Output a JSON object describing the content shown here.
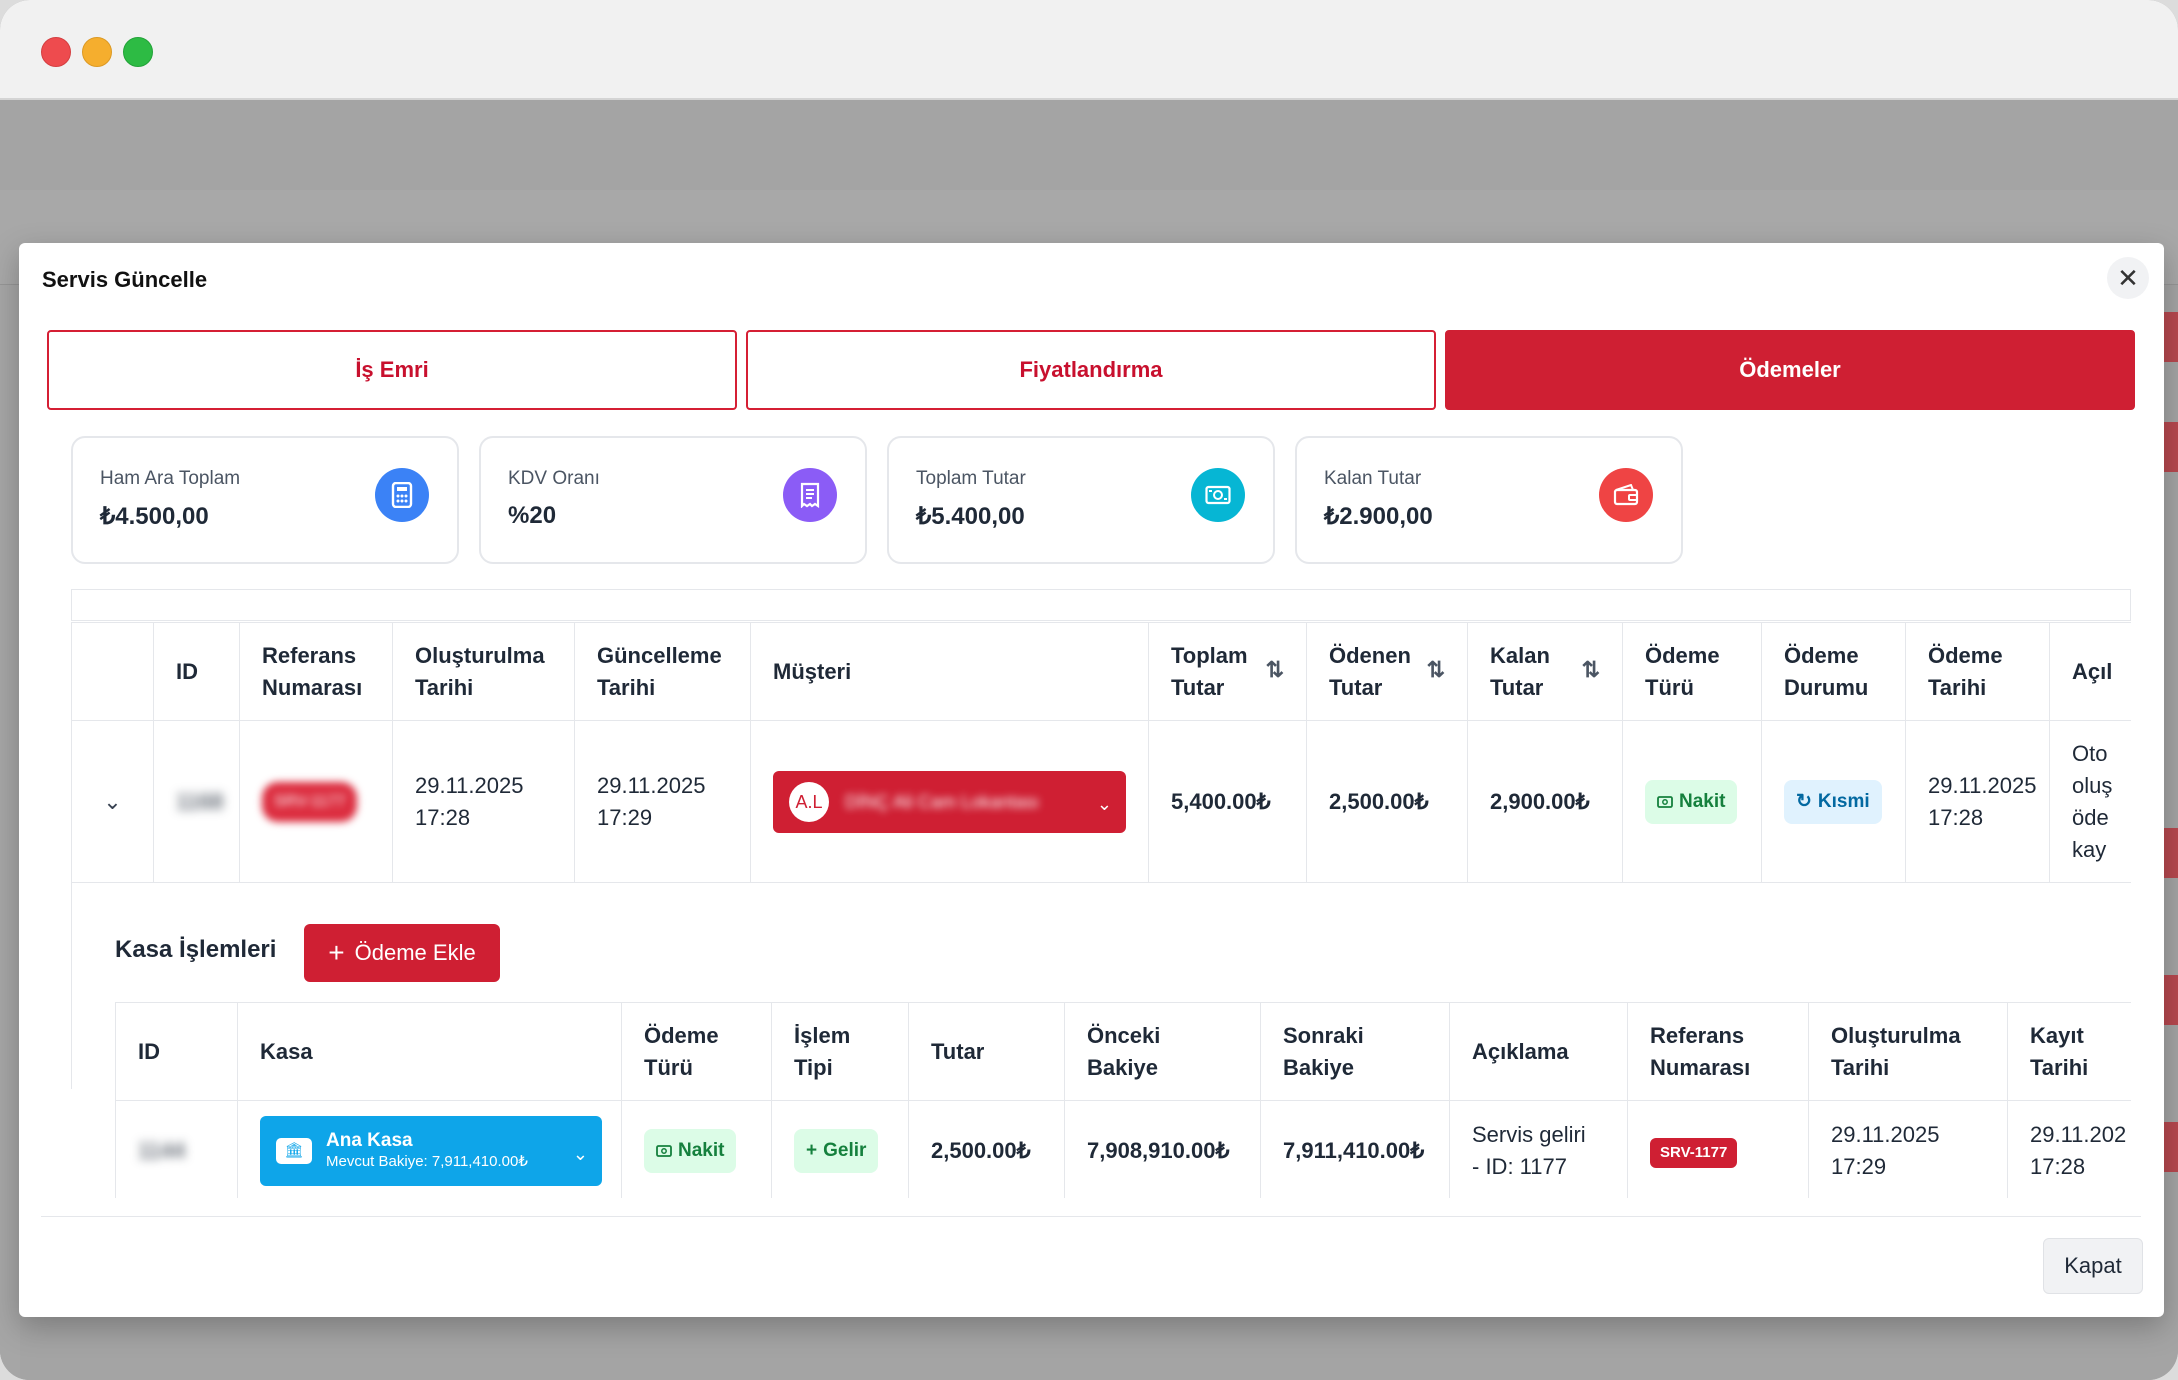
{
  "modal": {
    "title": "Servis Güncelle",
    "close_icon": "close-icon"
  },
  "tabs": [
    {
      "label": "İş Emri",
      "active": false
    },
    {
      "label": "Fiyatlandırma",
      "active": false
    },
    {
      "label": "Ödemeler",
      "active": true
    }
  ],
  "summary_cards": [
    {
      "label": "Ham Ara Toplam",
      "value": "₺4.500,00",
      "icon": "calculator-icon",
      "color": "#3b82f6"
    },
    {
      "label": "KDV Oranı",
      "value": "%20",
      "icon": "receipt-icon",
      "color": "#8b5cf6"
    },
    {
      "label": "Toplam Tutar",
      "value": "₺5.400,00",
      "icon": "money-icon",
      "color": "#06b6d4"
    },
    {
      "label": "Kalan Tutar",
      "value": "₺2.900,00",
      "icon": "wallet-icon",
      "color": "#ef4444"
    }
  ],
  "services_table": {
    "headers": {
      "id": "ID",
      "ref": [
        "Referans",
        "Numarası"
      ],
      "created": [
        "Oluşturulma",
        "Tarihi"
      ],
      "updated": [
        "Güncelleme",
        "Tarihi"
      ],
      "customer": "Müşteri",
      "total": [
        "Toplam",
        "Tutar"
      ],
      "paid": [
        "Ödenen",
        "Tutar"
      ],
      "remaining": [
        "Kalan",
        "Tutar"
      ],
      "pay_type": [
        "Ödeme",
        "Türü"
      ],
      "pay_status": [
        "Ödeme",
        "Durumu"
      ],
      "pay_date": [
        "Ödeme",
        "Tarihi"
      ],
      "desc": "Açıl"
    },
    "row": {
      "id": "1168",
      "ref": "SRV-1177",
      "created": [
        "29.11.2025",
        "17:28"
      ],
      "updated": [
        "29.11.2025",
        "17:29"
      ],
      "customer_initials": "A.L",
      "customer_name": "DİNÇ Ali Cam Lokantası",
      "total": "5,400.00₺",
      "paid": "2,500.00₺",
      "remaining": "2,900.00₺",
      "pay_type": "Nakit",
      "pay_status": "Kısmi",
      "pay_date": [
        "29.11.2025",
        "17:28"
      ],
      "desc": [
        "Oto",
        "oluş",
        "öde",
        "kay"
      ]
    }
  },
  "kasa": {
    "title": "Kasa İşlemleri",
    "add_button": "Ödeme Ekle",
    "headers": {
      "id": "ID",
      "kasa": "Kasa",
      "pay_type": [
        "Ödeme",
        "Türü"
      ],
      "tx_type": [
        "İşlem",
        "Tipi"
      ],
      "amount": "Tutar",
      "prev_balance": [
        "Önceki",
        "Bakiye"
      ],
      "next_balance": [
        "Sonraki",
        "Bakiye"
      ],
      "desc": "Açıklama",
      "ref": [
        "Referans",
        "Numarası"
      ],
      "created": [
        "Oluşturulma",
        "Tarihi"
      ],
      "record": [
        "Kayıt",
        "Tarihi"
      ]
    },
    "row": {
      "id": "1144",
      "kasa_name": "Ana Kasa",
      "kasa_balance": "Mevcut Bakiye: 7,911,410.00₺",
      "pay_type": "Nakit",
      "tx_type": "Gelir",
      "amount": "2,500.00₺",
      "prev_balance": "7,908,910.00₺",
      "next_balance": "7,911,410.00₺",
      "desc": [
        "Servis geliri",
        "- ID: 1177"
      ],
      "ref": "SRV-1177",
      "created": "29.11.2025 17:29",
      "record": [
        "29.11.202",
        "17:28"
      ]
    }
  },
  "footer": {
    "close_label": "Kapat"
  }
}
